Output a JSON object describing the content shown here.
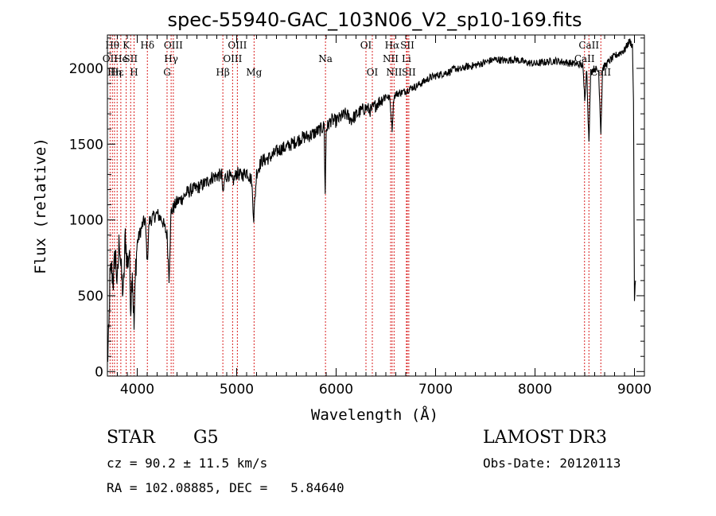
{
  "chart_data": {
    "type": "line",
    "title": "spec-55940-GAC_103N06_V2_sp10-169.fits",
    "xlabel": "Wavelength (Å)",
    "ylabel": "Flux (relative)",
    "xlim": [
      3700,
      9100
    ],
    "ylim": [
      -30,
      2220
    ],
    "x_ticks": [
      4000,
      5000,
      6000,
      7000,
      8000,
      9000
    ],
    "x_tick_labels": [
      "4000",
      "5000",
      "6000",
      "7000",
      "8000",
      "9000"
    ],
    "y_ticks": [
      0,
      500,
      1000,
      1500,
      2000
    ],
    "y_tick_labels": [
      "0",
      "500",
      "1000",
      "1500",
      "2000"
    ],
    "series": [
      {
        "name": "spectrum",
        "anchors": [
          [
            3700,
            60
          ],
          [
            3715,
            250
          ],
          [
            3725,
            600
          ],
          [
            3740,
            680
          ],
          [
            3760,
            600
          ],
          [
            3780,
            800
          ],
          [
            3800,
            560
          ],
          [
            3820,
            900
          ],
          [
            3840,
            640
          ],
          [
            3860,
            500
          ],
          [
            3880,
            900
          ],
          [
            3900,
            700
          ],
          [
            3920,
            800
          ],
          [
            3935,
            420
          ],
          [
            3950,
            700
          ],
          [
            3968,
            280
          ],
          [
            3985,
            700
          ],
          [
            4000,
            850
          ],
          [
            4030,
            920
          ],
          [
            4060,
            980
          ],
          [
            4080,
            1000
          ],
          [
            4101,
            720
          ],
          [
            4120,
            990
          ],
          [
            4150,
            1010
          ],
          [
            4200,
            1040
          ],
          [
            4250,
            1000
          ],
          [
            4300,
            900
          ],
          [
            4320,
            620
          ],
          [
            4340,
            1050
          ],
          [
            4400,
            1120
          ],
          [
            4450,
            1140
          ],
          [
            4500,
            1180
          ],
          [
            4550,
            1200
          ],
          [
            4600,
            1210
          ],
          [
            4650,
            1230
          ],
          [
            4700,
            1250
          ],
          [
            4750,
            1280
          ],
          [
            4800,
            1290
          ],
          [
            4850,
            1300
          ],
          [
            4862,
            1150
          ],
          [
            4880,
            1280
          ],
          [
            4920,
            1300
          ],
          [
            4960,
            1250
          ],
          [
            5000,
            1310
          ],
          [
            5050,
            1290
          ],
          [
            5100,
            1320
          ],
          [
            5150,
            1260
          ],
          [
            5172,
            1010
          ],
          [
            5200,
            1310
          ],
          [
            5250,
            1390
          ],
          [
            5300,
            1400
          ],
          [
            5350,
            1420
          ],
          [
            5400,
            1450
          ],
          [
            5450,
            1470
          ],
          [
            5500,
            1480
          ],
          [
            5550,
            1500
          ],
          [
            5600,
            1520
          ],
          [
            5650,
            1540
          ],
          [
            5700,
            1550
          ],
          [
            5750,
            1560
          ],
          [
            5800,
            1580
          ],
          [
            5850,
            1600
          ],
          [
            5880,
            1620
          ],
          [
            5890,
            1160
          ],
          [
            5900,
            1600
          ],
          [
            5950,
            1660
          ],
          [
            6000,
            1650
          ],
          [
            6050,
            1680
          ],
          [
            6100,
            1700
          ],
          [
            6150,
            1660
          ],
          [
            6200,
            1690
          ],
          [
            6250,
            1720
          ],
          [
            6300,
            1740
          ],
          [
            6350,
            1720
          ],
          [
            6400,
            1760
          ],
          [
            6450,
            1790
          ],
          [
            6500,
            1820
          ],
          [
            6540,
            1800
          ],
          [
            6563,
            1600
          ],
          [
            6580,
            1810
          ],
          [
            6600,
            1830
          ],
          [
            6650,
            1840
          ],
          [
            6700,
            1850
          ],
          [
            6750,
            1870
          ],
          [
            6800,
            1880
          ],
          [
            6850,
            1900
          ],
          [
            6900,
            1920
          ],
          [
            6950,
            1940
          ],
          [
            7000,
            1950
          ],
          [
            7050,
            1960
          ],
          [
            7100,
            1970
          ],
          [
            7150,
            1980
          ],
          [
            7200,
            2000
          ],
          [
            7250,
            1990
          ],
          [
            7300,
            2010
          ],
          [
            7400,
            2020
          ],
          [
            7500,
            2040
          ],
          [
            7600,
            2060
          ],
          [
            7700,
            2050
          ],
          [
            7800,
            2060
          ],
          [
            7900,
            2040
          ],
          [
            8000,
            2030
          ],
          [
            8100,
            2040
          ],
          [
            8200,
            2050
          ],
          [
            8300,
            2040
          ],
          [
            8400,
            2030
          ],
          [
            8480,
            2020
          ],
          [
            8500,
            1800
          ],
          [
            8520,
            2000
          ],
          [
            8542,
            1500
          ],
          [
            8560,
            1980
          ],
          [
            8600,
            2000
          ],
          [
            8640,
            1980
          ],
          [
            8662,
            1580
          ],
          [
            8680,
            2000
          ],
          [
            8750,
            2050
          ],
          [
            8800,
            2080
          ],
          [
            8850,
            2100
          ],
          [
            8900,
            2120
          ],
          [
            8950,
            2180
          ],
          [
            8980,
            2150
          ],
          [
            8990,
            1800
          ],
          [
            9000,
            450
          ],
          [
            9010,
            600
          ]
        ]
      }
    ],
    "spectral_lines": [
      {
        "wavelength": 3727,
        "label": "OII",
        "row": 1
      },
      {
        "wavelength": 3750,
        "label": "Hθ",
        "row": 0
      },
      {
        "wavelength": 3771,
        "label": "Hη",
        "row": 2
      },
      {
        "wavelength": 3798,
        "label": "Hε",
        "row": 2
      },
      {
        "wavelength": 3835,
        "label": "He",
        "row": 1
      },
      {
        "wavelength": 3889,
        "label": "K",
        "row": 0
      },
      {
        "wavelength": 3934,
        "label": "SII",
        "row": 1
      },
      {
        "wavelength": 3968,
        "label": "H",
        "row": 2
      },
      {
        "wavelength": 4102,
        "label": "Hδ",
        "row": 0
      },
      {
        "wavelength": 4300,
        "label": "G",
        "row": 2
      },
      {
        "wavelength": 4341,
        "label": "Hγ",
        "row": 1
      },
      {
        "wavelength": 4363,
        "label": "OIII",
        "row": 0
      },
      {
        "wavelength": 4861,
        "label": "Hβ",
        "row": 2
      },
      {
        "wavelength": 4959,
        "label": "OIII",
        "row": 1
      },
      {
        "wavelength": 5007,
        "label": "OIII",
        "row": 0
      },
      {
        "wavelength": 5175,
        "label": "Mg",
        "row": 2
      },
      {
        "wavelength": 5893,
        "label": "Na",
        "row": 1
      },
      {
        "wavelength": 6300,
        "label": "OI",
        "row": 0
      },
      {
        "wavelength": 6364,
        "label": "OI",
        "row": 2
      },
      {
        "wavelength": 6548,
        "label": "NII",
        "row": 1
      },
      {
        "wavelength": 6563,
        "label": "Hα",
        "row": 0
      },
      {
        "wavelength": 6583,
        "label": "NII",
        "row": 2
      },
      {
        "wavelength": 6707,
        "label": "Li",
        "row": 1
      },
      {
        "wavelength": 6716,
        "label": "SII",
        "row": 0
      },
      {
        "wavelength": 6731,
        "label": "SII",
        "row": 2
      },
      {
        "wavelength": 8498,
        "label": "CaII",
        "row": 1
      },
      {
        "wavelength": 8542,
        "label": "CaII",
        "row": 0
      },
      {
        "wavelength": 8662,
        "label": "CaII",
        "row": 2
      }
    ]
  },
  "info": {
    "class": "STAR",
    "subclass": "G5",
    "survey": "LAMOST DR3",
    "cz": "cz = 90.2 ± 11.5 km/s",
    "obs_date": "Obs-Date: 20120113",
    "radec": "RA = 102.08885, DEC =   5.84640"
  }
}
